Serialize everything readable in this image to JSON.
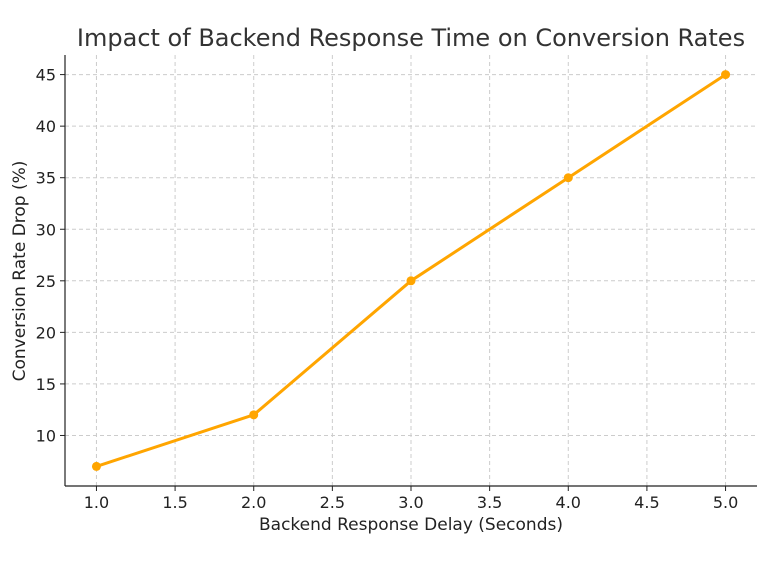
{
  "chart_data": {
    "type": "line",
    "title": "Impact of Backend Response Time on Conversion Rates",
    "xlabel": "Backend Response Delay (Seconds)",
    "ylabel": "Conversion Rate Drop (%)",
    "x": [
      1.0,
      2.0,
      3.0,
      4.0,
      5.0
    ],
    "series": [
      {
        "values": [
          7,
          12,
          25,
          35,
          45
        ]
      }
    ],
    "xlim": [
      0.8,
      5.2
    ],
    "ylim": [
      5.1,
      46.9
    ],
    "x_ticks": [
      "1.0",
      "1.5",
      "2.0",
      "2.5",
      "3.0",
      "3.5",
      "4.0",
      "4.5",
      "5.0"
    ],
    "y_ticks": [
      "10",
      "15",
      "20",
      "25",
      "30",
      "35",
      "40",
      "45"
    ],
    "grid": true,
    "marker": "circle",
    "line_color": "#FFA500"
  }
}
